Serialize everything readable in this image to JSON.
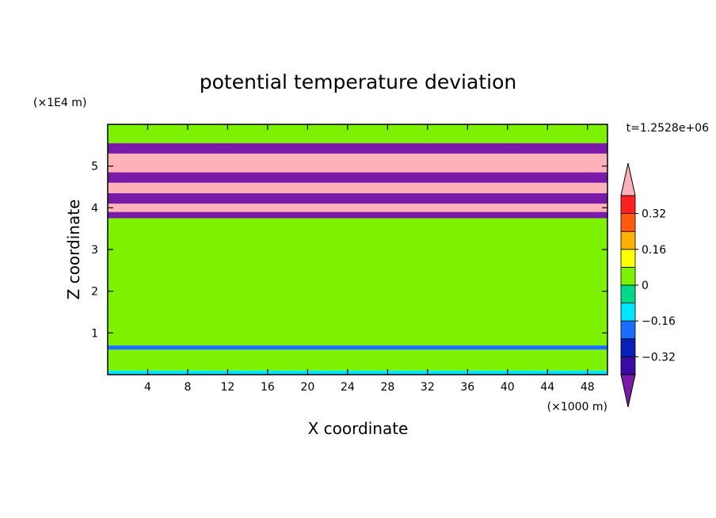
{
  "chart_data": {
    "type": "heatmap",
    "title": "potential temperature deviation",
    "xlabel": "X coordinate",
    "ylabel": "Z coordinate",
    "x_unit": "(×1000 m)",
    "y_unit": "(×1E4 m)",
    "time_label": "t=1.2528e+06",
    "xlim": [
      0,
      50
    ],
    "ylim": [
      0,
      6
    ],
    "x_ticks": [
      4,
      8,
      12,
      16,
      20,
      24,
      28,
      32,
      36,
      40,
      44,
      48
    ],
    "y_ticks": [
      1,
      2,
      3,
      4,
      5
    ],
    "colorbar": {
      "levels": [
        -0.4,
        -0.32,
        -0.24,
        -0.16,
        -0.08,
        0,
        0.08,
        0.16,
        0.24,
        0.32,
        0.4
      ],
      "tick_labels": [
        {
          "value": 0.32,
          "label": "0.32"
        },
        {
          "value": 0.16,
          "label": "0.16"
        },
        {
          "value": 0,
          "label": "0"
        },
        {
          "value": -0.16,
          "label": "−0.16"
        },
        {
          "value": -0.32,
          "label": "−0.32"
        }
      ],
      "colors": [
        "#7a1aa8",
        "#3a0ca3",
        "#0a1fb5",
        "#1a6dff",
        "#00e5ff",
        "#00d98a",
        "#7df200",
        "#ffff00",
        "#ffb000",
        "#ff5a10",
        "#ff2020",
        "#ffb0b8"
      ]
    },
    "z_layers": [
      {
        "z": [
          0.0,
          0.1
        ],
        "value": -0.1
      },
      {
        "z": [
          0.1,
          0.35
        ],
        "value": 0.05
      },
      {
        "z": [
          0.35,
          0.6
        ],
        "value": 0.0
      },
      {
        "z": [
          0.6,
          0.7
        ],
        "value": -0.2
      },
      {
        "z": [
          0.7,
          3.75
        ],
        "value": 0.03
      },
      {
        "z": [
          3.75,
          3.9
        ],
        "value": -0.45
      },
      {
        "z": [
          3.9,
          4.1
        ],
        "value": 0.45
      },
      {
        "z": [
          4.1,
          4.35
        ],
        "value": -0.45
      },
      {
        "z": [
          4.35,
          4.6
        ],
        "value": 0.45
      },
      {
        "z": [
          4.6,
          4.85
        ],
        "value": -0.45
      },
      {
        "z": [
          4.85,
          5.15
        ],
        "value": 0.45
      },
      {
        "z": [
          5.15,
          5.3
        ],
        "value": 0.45
      },
      {
        "z": [
          5.3,
          5.55
        ],
        "value": -0.45
      },
      {
        "z": [
          5.55,
          6.0
        ],
        "value": 0.05
      }
    ]
  }
}
